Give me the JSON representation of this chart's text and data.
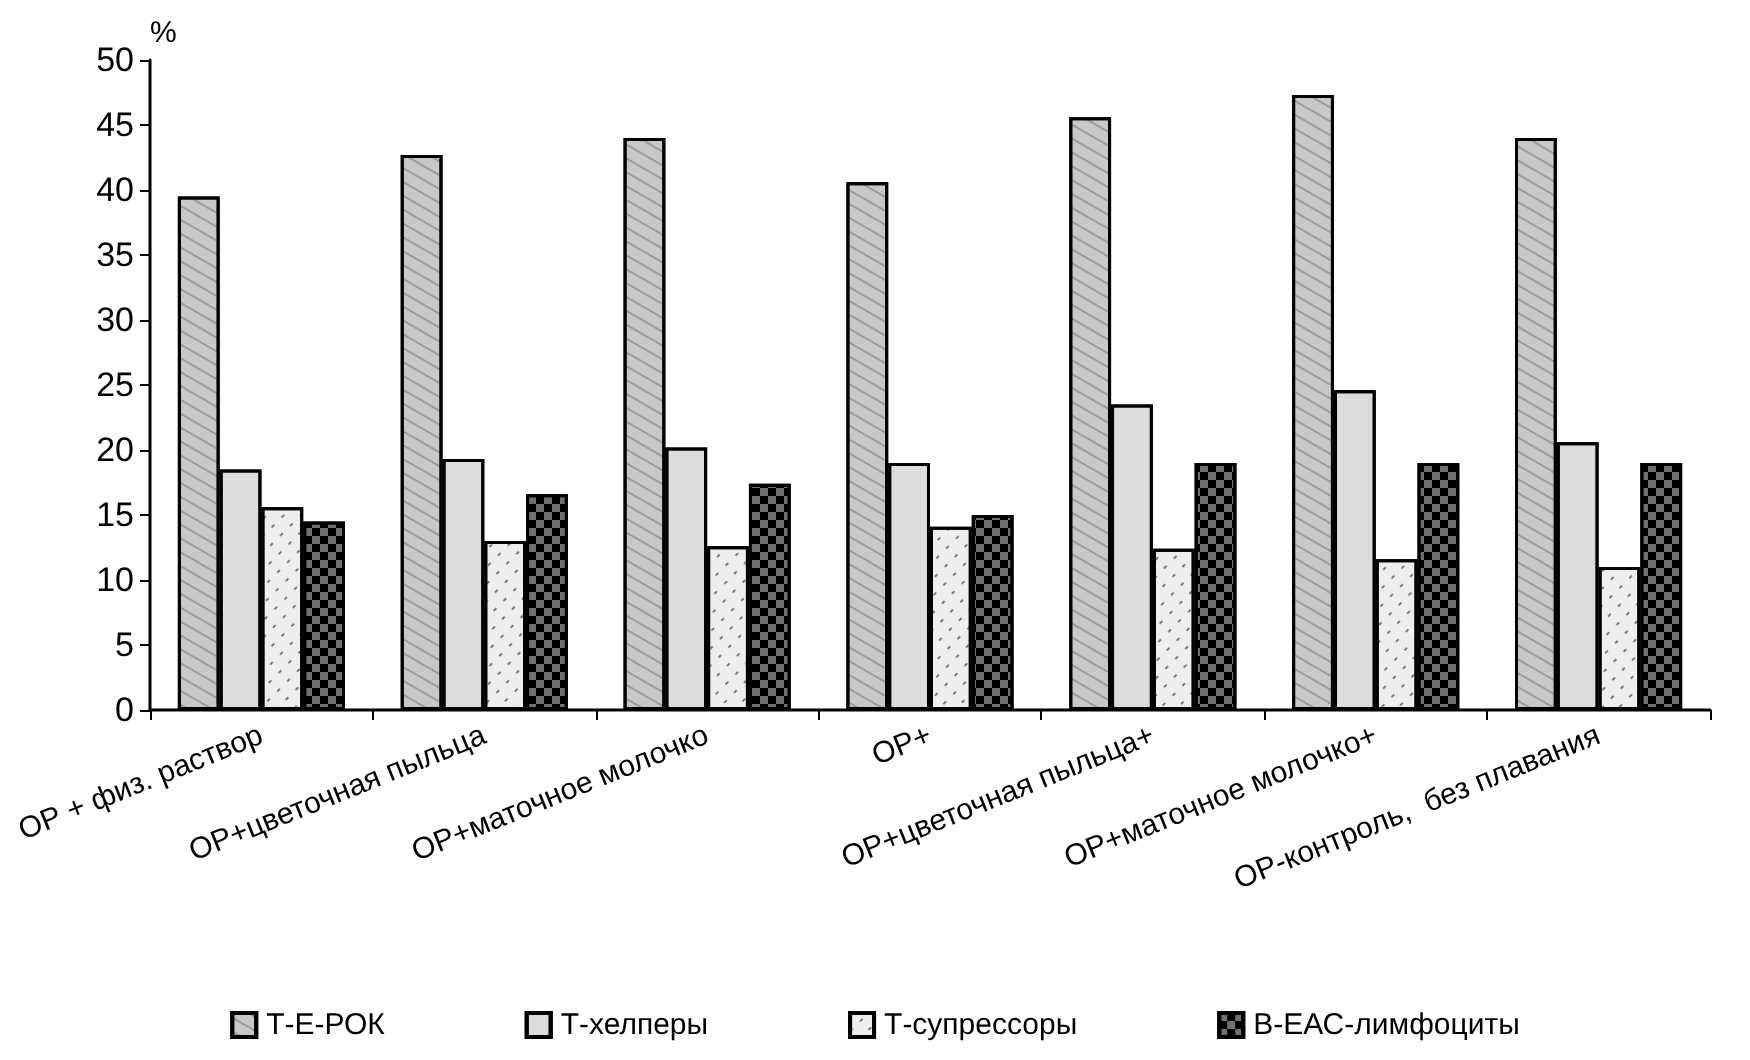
{
  "chart_data": {
    "type": "bar",
    "ylabel": "%",
    "categories": [
      "ОР + физ. раствор",
      "ОР+цветочная пыльца",
      "ОР+маточное молочко",
      "ОР+",
      "ОР+цветочная пыльца+",
      "ОР+маточное молочко+",
      "ОР-контроль,  без плавания"
    ],
    "series": [
      {
        "name": "Т-Е-РОК",
        "color": "#c8c8c8",
        "values": [
          39.5,
          42.7,
          44,
          40.6,
          45.6,
          47.3,
          44
        ]
      },
      {
        "name": "Т-хелперы",
        "color": "#dcdcdc",
        "values": [
          18.5,
          19.3,
          20.2,
          19,
          23.5,
          24.6,
          20.6
        ]
      },
      {
        "name": "Т-супрессоры",
        "color": "#eeeeee",
        "values": [
          15.6,
          13,
          12.6,
          14.1,
          12.4,
          11.6,
          11
        ]
      },
      {
        "name": "В-ЕАС-лимфоциты",
        "color": "#707070",
        "values": [
          14.5,
          16.6,
          17.4,
          15,
          19,
          19,
          19
        ]
      }
    ],
    "ylim": [
      0,
      50
    ],
    "yticks": [
      0,
      5,
      10,
      15,
      20,
      25,
      30,
      35,
      40,
      45,
      50
    ],
    "grid": false,
    "legend": "bottom"
  }
}
